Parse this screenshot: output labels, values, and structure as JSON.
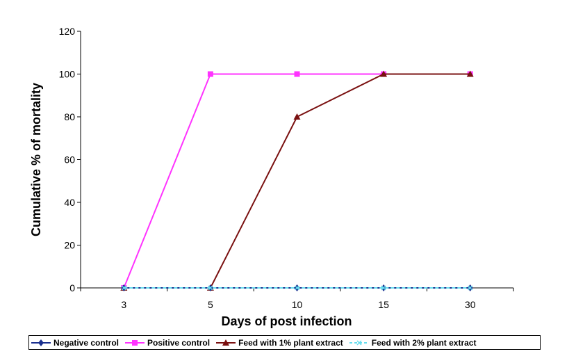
{
  "chart_data": {
    "type": "line",
    "title": "",
    "xlabel": "Days of post infection",
    "ylabel": "Cumulative % of mortality",
    "categories": [
      "3",
      "5",
      "10",
      "15",
      "30"
    ],
    "ylim": [
      0,
      120
    ],
    "yticks": [
      "0",
      "20",
      "40",
      "60",
      "80",
      "100",
      "120"
    ],
    "grid": false,
    "legend_position": "bottom",
    "series": [
      {
        "name": "Negative control",
        "values": [
          0,
          0,
          0,
          0,
          0
        ],
        "color": "#1a2f8f",
        "marker": "diamond",
        "dash": false
      },
      {
        "name": "Positive control",
        "values": [
          0,
          100,
          100,
          100,
          100
        ],
        "color": "#ff33ff",
        "marker": "square",
        "dash": false
      },
      {
        "name": "Feed with 1% plant extract",
        "values": [
          0,
          0,
          80,
          100,
          100
        ],
        "color": "#7a1010",
        "marker": "triangle",
        "dash": false
      },
      {
        "name": "Feed with 2% plant extract",
        "values": [
          0,
          0,
          0,
          0,
          0
        ],
        "color": "#66ddee",
        "marker": "x",
        "dash": true
      }
    ]
  }
}
